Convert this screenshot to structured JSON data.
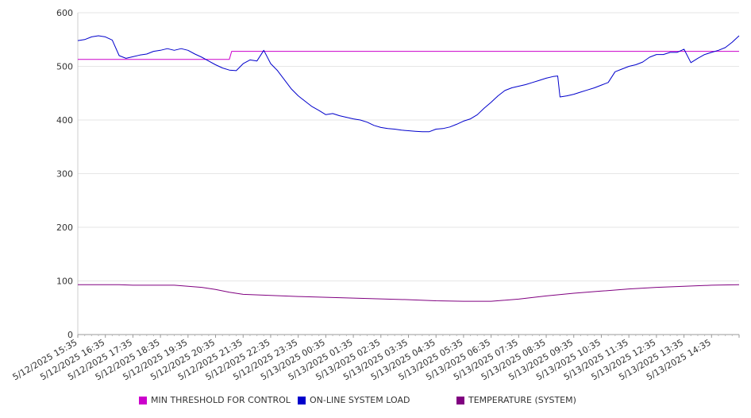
{
  "chart_data": {
    "type": "line",
    "ylim": [
      0,
      600
    ],
    "yticks": [
      0,
      100,
      200,
      300,
      400,
      500,
      600
    ],
    "grid": true,
    "legend_position": "bottom",
    "x_tick_labels": [
      "5/12/2025 15:35",
      "5/12/2025 16:35",
      "5/12/2025 17:35",
      "5/12/2025 18:35",
      "5/12/2025 19:35",
      "5/12/2025 20:35",
      "5/12/2025 21:35",
      "5/12/2025 22:35",
      "5/12/2025 23:35",
      "5/13/2025 00:35",
      "5/13/2025 01:35",
      "5/13/2025 02:35",
      "5/13/2025 03:35",
      "5/13/2025 04:35",
      "5/13/2025 05:35",
      "5/13/2025 06:35",
      "5/13/2025 07:35",
      "5/13/2025 08:35",
      "5/13/2025 09:35",
      "5/13/2025 10:35",
      "5/13/2025 11:35",
      "5/13/2025 12:35",
      "5/13/2025 13:35",
      "5/13/2025 14:35"
    ],
    "series": [
      {
        "name": "MIN THRESHOLD FOR CONTROL",
        "color": "#cc00cc",
        "points": [
          [
            "5/12/2025 15:35",
            513
          ],
          [
            "5/12/2025 21:05",
            513
          ],
          [
            "5/12/2025 21:10",
            528
          ],
          [
            "5/13/2025 15:35",
            528
          ]
        ]
      },
      {
        "name": "ON-LINE SYSTEM LOAD",
        "color": "#0000cc",
        "points": [
          [
            "5/12/2025 15:35",
            548
          ],
          [
            "5/12/2025 15:50",
            550
          ],
          [
            "5/12/2025 16:05",
            555
          ],
          [
            "5/12/2025 16:20",
            557
          ],
          [
            "5/12/2025 16:35",
            555
          ],
          [
            "5/12/2025 16:50",
            549
          ],
          [
            "5/12/2025 17:05",
            520
          ],
          [
            "5/12/2025 17:20",
            515
          ],
          [
            "5/12/2025 17:35",
            518
          ],
          [
            "5/12/2025 17:50",
            521
          ],
          [
            "5/12/2025 18:05",
            523
          ],
          [
            "5/12/2025 18:20",
            528
          ],
          [
            "5/12/2025 18:35",
            530
          ],
          [
            "5/12/2025 18:50",
            533
          ],
          [
            "5/12/2025 19:05",
            530
          ],
          [
            "5/12/2025 19:20",
            533
          ],
          [
            "5/12/2025 19:35",
            530
          ],
          [
            "5/12/2025 19:50",
            523
          ],
          [
            "5/12/2025 20:05",
            517
          ],
          [
            "5/12/2025 20:20",
            510
          ],
          [
            "5/12/2025 20:35",
            503
          ],
          [
            "5/12/2025 20:50",
            497
          ],
          [
            "5/12/2025 21:05",
            493
          ],
          [
            "5/12/2025 21:20",
            492
          ],
          [
            "5/12/2025 21:35",
            505
          ],
          [
            "5/12/2025 21:50",
            512
          ],
          [
            "5/12/2025 22:05",
            510
          ],
          [
            "5/12/2025 22:20",
            530
          ],
          [
            "5/12/2025 22:35",
            505
          ],
          [
            "5/12/2025 22:50",
            492
          ],
          [
            "5/12/2025 23:05",
            475
          ],
          [
            "5/12/2025 23:20",
            458
          ],
          [
            "5/12/2025 23:35",
            445
          ],
          [
            "5/12/2025 23:50",
            435
          ],
          [
            "5/13/2025 00:05",
            425
          ],
          [
            "5/13/2025 00:20",
            418
          ],
          [
            "5/13/2025 00:35",
            410
          ],
          [
            "5/13/2025 00:50",
            412
          ],
          [
            "5/13/2025 01:05",
            408
          ],
          [
            "5/13/2025 01:20",
            405
          ],
          [
            "5/13/2025 01:35",
            402
          ],
          [
            "5/13/2025 01:50",
            400
          ],
          [
            "5/13/2025 02:05",
            396
          ],
          [
            "5/13/2025 02:20",
            390
          ],
          [
            "5/13/2025 02:35",
            386
          ],
          [
            "5/13/2025 02:50",
            384
          ],
          [
            "5/13/2025 03:05",
            383
          ],
          [
            "5/13/2025 03:20",
            381
          ],
          [
            "5/13/2025 03:35",
            380
          ],
          [
            "5/13/2025 03:50",
            379
          ],
          [
            "5/13/2025 04:05",
            378
          ],
          [
            "5/13/2025 04:20",
            378
          ],
          [
            "5/13/2025 04:35",
            383
          ],
          [
            "5/13/2025 04:50",
            384
          ],
          [
            "5/13/2025 05:05",
            387
          ],
          [
            "5/13/2025 05:20",
            392
          ],
          [
            "5/13/2025 05:35",
            398
          ],
          [
            "5/13/2025 05:50",
            402
          ],
          [
            "5/13/2025 06:05",
            410
          ],
          [
            "5/13/2025 06:20",
            422
          ],
          [
            "5/13/2025 06:35",
            433
          ],
          [
            "5/13/2025 06:50",
            445
          ],
          [
            "5/13/2025 07:05",
            455
          ],
          [
            "5/13/2025 07:20",
            460
          ],
          [
            "5/13/2025 07:35",
            463
          ],
          [
            "5/13/2025 07:50",
            466
          ],
          [
            "5/13/2025 08:05",
            470
          ],
          [
            "5/13/2025 08:20",
            474
          ],
          [
            "5/13/2025 08:35",
            478
          ],
          [
            "5/13/2025 08:50",
            481
          ],
          [
            "5/13/2025 09:00",
            482
          ],
          [
            "5/13/2025 09:05",
            443
          ],
          [
            "5/13/2025 09:20",
            445
          ],
          [
            "5/13/2025 09:35",
            448
          ],
          [
            "5/13/2025 09:50",
            452
          ],
          [
            "5/13/2025 10:05",
            456
          ],
          [
            "5/13/2025 10:20",
            460
          ],
          [
            "5/13/2025 10:35",
            465
          ],
          [
            "5/13/2025 10:50",
            470
          ],
          [
            "5/13/2025 11:05",
            490
          ],
          [
            "5/13/2025 11:20",
            495
          ],
          [
            "5/13/2025 11:35",
            500
          ],
          [
            "5/13/2025 11:50",
            503
          ],
          [
            "5/13/2025 12:05",
            508
          ],
          [
            "5/13/2025 12:20",
            517
          ],
          [
            "5/13/2025 12:35",
            522
          ],
          [
            "5/13/2025 12:50",
            522
          ],
          [
            "5/13/2025 13:05",
            526
          ],
          [
            "5/13/2025 13:20",
            526
          ],
          [
            "5/13/2025 13:35",
            532
          ],
          [
            "5/13/2025 13:50",
            507
          ],
          [
            "5/13/2025 14:05",
            515
          ],
          [
            "5/13/2025 14:20",
            522
          ],
          [
            "5/13/2025 14:35",
            526
          ],
          [
            "5/13/2025 14:50",
            530
          ],
          [
            "5/13/2025 15:05",
            535
          ],
          [
            "5/13/2025 15:20",
            545
          ],
          [
            "5/13/2025 15:35",
            557
          ]
        ]
      },
      {
        "name": "TEMPERATURE (SYSTEM)",
        "color": "#800080",
        "points": [
          [
            "5/12/2025 15:35",
            93
          ],
          [
            "5/12/2025 17:05",
            93
          ],
          [
            "5/12/2025 17:35",
            92
          ],
          [
            "5/12/2025 19:05",
            92
          ],
          [
            "5/12/2025 20:05",
            88
          ],
          [
            "5/12/2025 20:35",
            84
          ],
          [
            "5/12/2025 21:05",
            79
          ],
          [
            "5/12/2025 21:35",
            75
          ],
          [
            "5/12/2025 22:35",
            73
          ],
          [
            "5/12/2025 23:35",
            71
          ],
          [
            "5/13/2025 01:35",
            68
          ],
          [
            "5/13/2025 03:35",
            65
          ],
          [
            "5/13/2025 04:35",
            63
          ],
          [
            "5/13/2025 05:35",
            62
          ],
          [
            "5/13/2025 06:35",
            62
          ],
          [
            "5/13/2025 07:35",
            66
          ],
          [
            "5/13/2025 08:35",
            72
          ],
          [
            "5/13/2025 09:35",
            77
          ],
          [
            "5/13/2025 10:35",
            81
          ],
          [
            "5/13/2025 11:35",
            85
          ],
          [
            "5/13/2025 12:35",
            88
          ],
          [
            "5/13/2025 13:35",
            90
          ],
          [
            "5/13/2025 14:35",
            92
          ],
          [
            "5/13/2025 15:35",
            93
          ]
        ]
      }
    ]
  }
}
